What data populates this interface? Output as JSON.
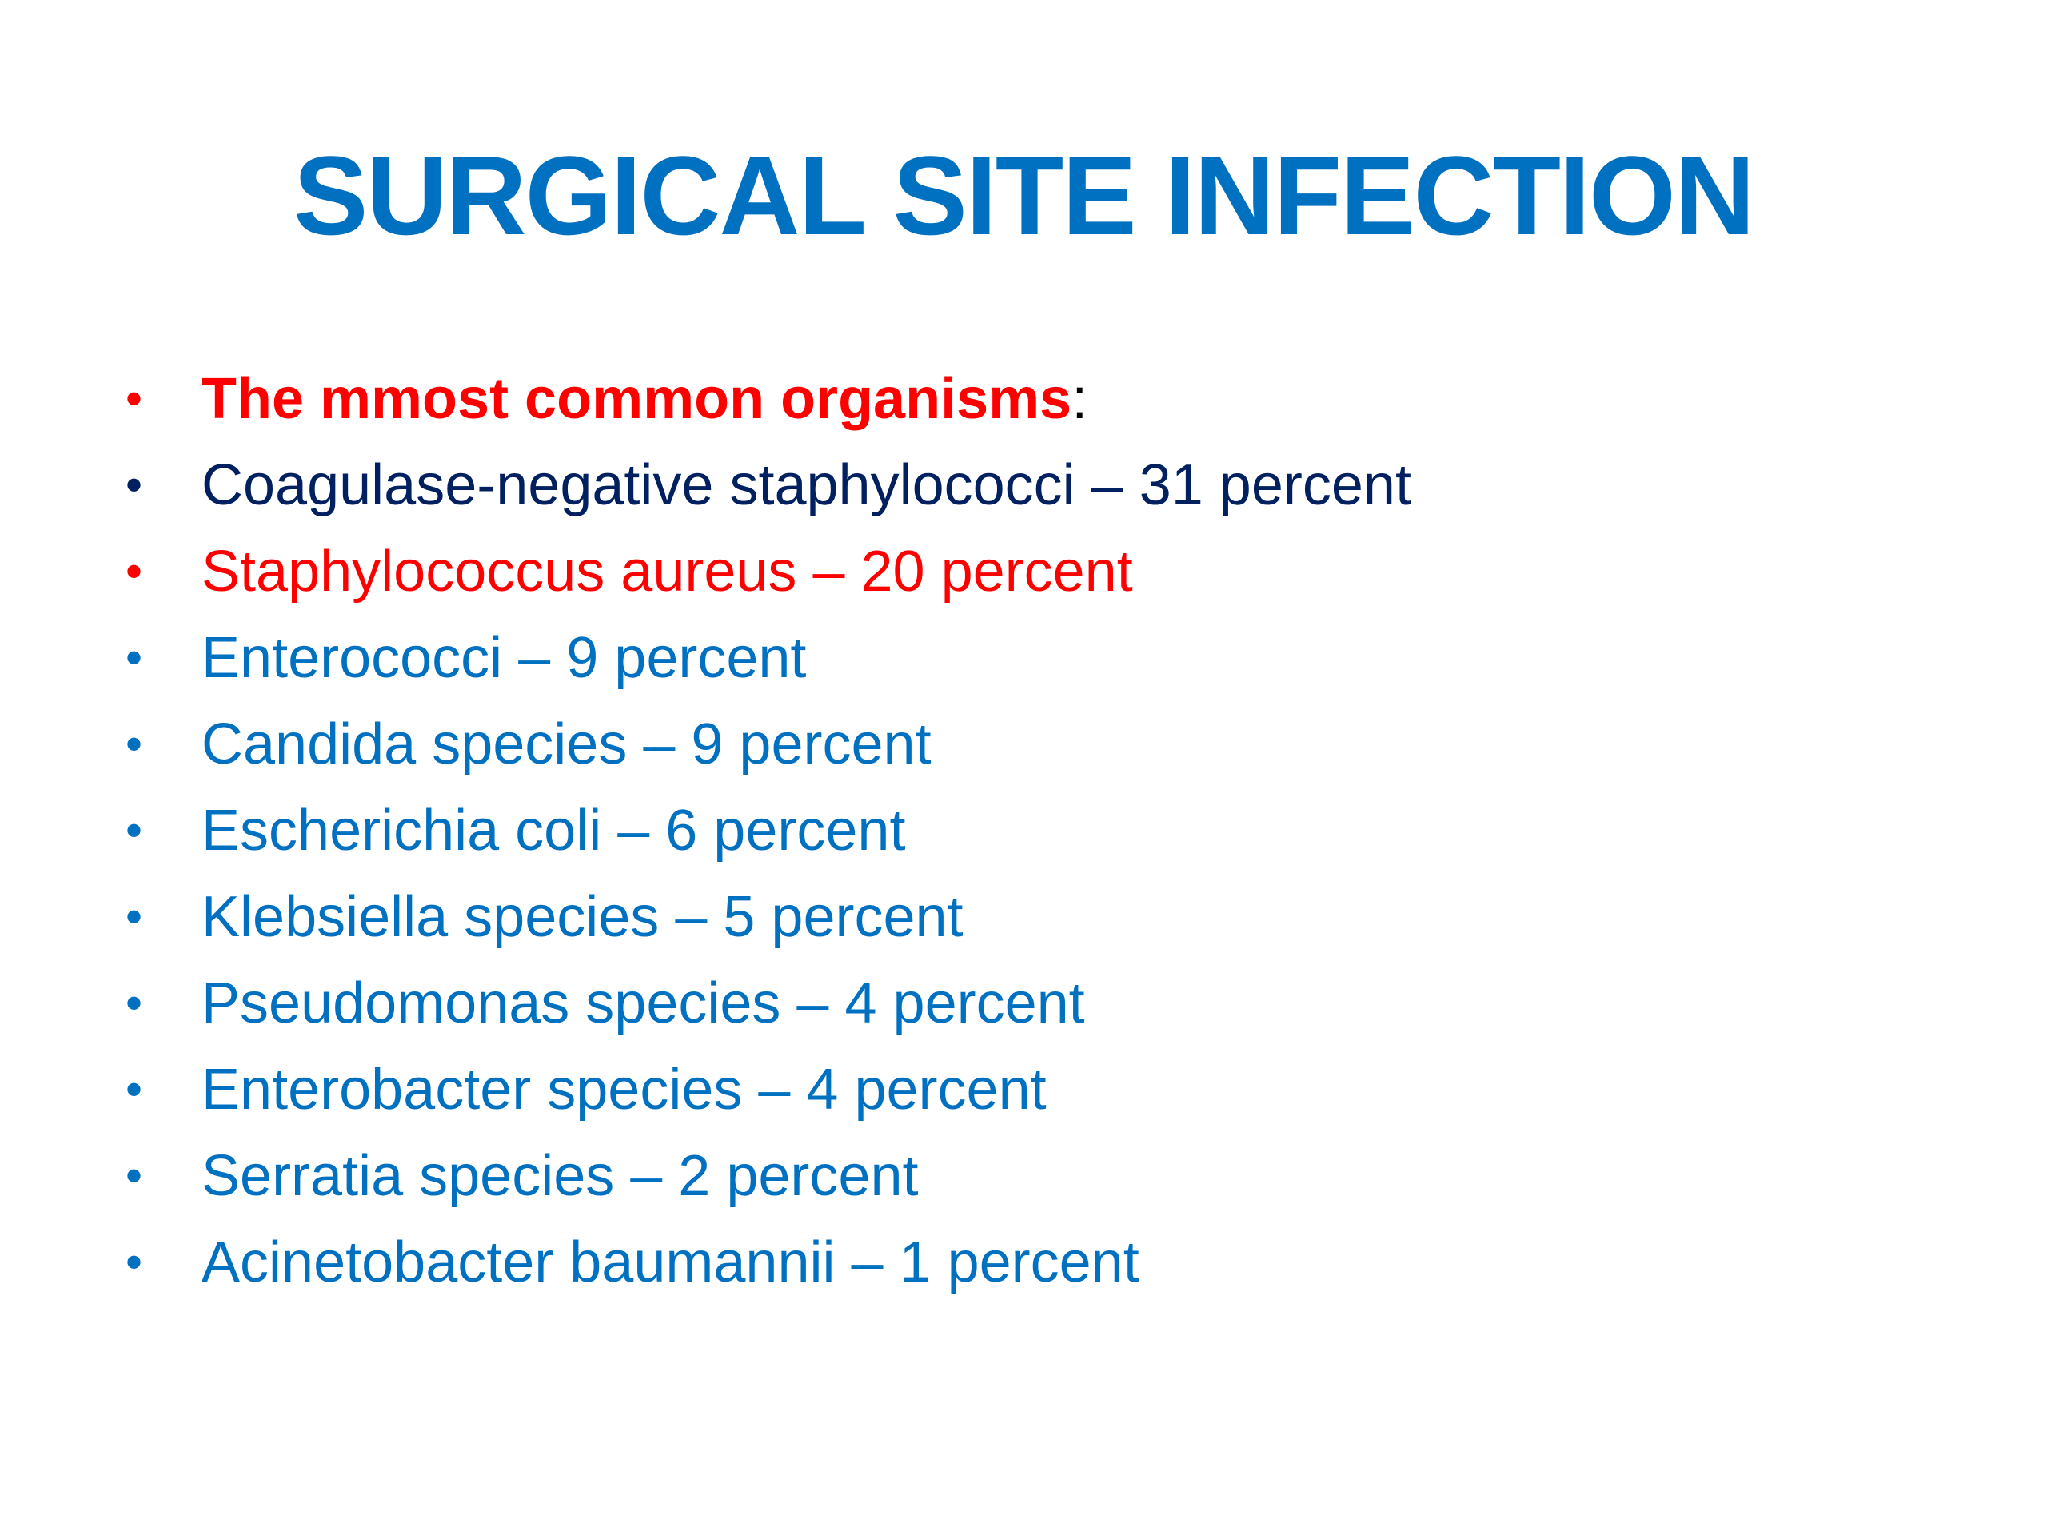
{
  "slide": {
    "title": "SURGICAL SITE INFECTION",
    "colors": {
      "title": "#0070C0",
      "red": "#FF0000",
      "navy": "#002060",
      "blue": "#0070C0",
      "black": "#000000"
    },
    "heading_item": {
      "text": "The mmost common organisms",
      "suffix": ":"
    },
    "items": [
      {
        "text": "Coagulase-negative staphylococci – 31 percent",
        "color": "#002060"
      },
      {
        "text": "Staphylococcus aureus – 20 percent",
        "color": "#FF0000"
      },
      {
        "text": "Enterococci – 9 percent",
        "color": "#0070C0"
      },
      {
        "text": "Candida species – 9 percent",
        "color": "#0070C0"
      },
      {
        "text": "Escherichia coli – 6 percent",
        "color": "#0070C0"
      },
      {
        "text": "Klebsiella species – 5 percent",
        "color": "#0070C0"
      },
      {
        "text": "Pseudomonas species – 4 percent",
        "color": "#0070C0"
      },
      {
        "text": "Enterobacter species – 4 percent",
        "color": "#0070C0"
      },
      {
        "text": "Serratia species – 2 percent",
        "color": "#0070C0"
      },
      {
        "text": "Acinetobacter baumannii – 1 percent",
        "color": "#0070C0"
      }
    ],
    "bullet_glyph": "•"
  }
}
